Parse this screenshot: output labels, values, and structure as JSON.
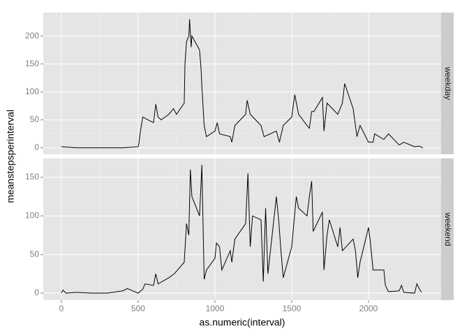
{
  "chart_data": {
    "type": "line",
    "xlabel": "as.numeric(interval)",
    "ylabel": "meanstepsperinterval",
    "xlim": [
      -117.75,
      2472.75
    ],
    "xticks": [
      0,
      500,
      1000,
      1500,
      2000
    ],
    "grid": true,
    "color": "#000000",
    "facets": [
      {
        "strip": "weekday",
        "ylim": [
          -11.5,
          242
        ],
        "yticks": [
          0,
          50,
          100,
          150,
          200
        ],
        "x": [
          0,
          100,
          200,
          300,
          400,
          500,
          505,
          515,
          530,
          600,
          615,
          630,
          650,
          700,
          730,
          750,
          800,
          805,
          815,
          830,
          835,
          845,
          850,
          900,
          910,
          915,
          930,
          945,
          1000,
          1015,
          1030,
          1100,
          1110,
          1130,
          1200,
          1210,
          1230,
          1300,
          1320,
          1400,
          1420,
          1445,
          1500,
          1520,
          1545,
          1600,
          1615,
          1630,
          1645,
          1700,
          1710,
          1730,
          1800,
          1830,
          1845,
          1900,
          1925,
          1945,
          2000,
          2030,
          2040,
          2100,
          2130,
          2200,
          2230,
          2300,
          2330,
          2355
        ],
        "values": [
          2,
          0,
          0,
          0,
          0,
          2,
          8,
          30,
          55,
          45,
          78,
          55,
          50,
          60,
          70,
          60,
          80,
          150,
          190,
          200,
          230,
          180,
          200,
          175,
          140,
          110,
          40,
          20,
          30,
          45,
          25,
          20,
          10,
          40,
          60,
          85,
          60,
          40,
          20,
          30,
          10,
          40,
          55,
          95,
          60,
          40,
          35,
          65,
          65,
          90,
          30,
          80,
          60,
          80,
          115,
          70,
          20,
          40,
          10,
          10,
          25,
          15,
          25,
          5,
          10,
          2,
          3,
          0
        ]
      },
      {
        "strip": "weekend",
        "ylim": [
          -9,
          174.4
        ],
        "yticks": [
          0,
          50,
          100,
          150
        ],
        "x": [
          0,
          10,
          30,
          100,
          200,
          300,
          400,
          430,
          500,
          530,
          545,
          600,
          615,
          630,
          700,
          735,
          800,
          815,
          830,
          840,
          850,
          900,
          915,
          930,
          945,
          1000,
          1010,
          1030,
          1045,
          1100,
          1110,
          1130,
          1200,
          1215,
          1230,
          1245,
          1300,
          1315,
          1330,
          1345,
          1400,
          1415,
          1430,
          1445,
          1500,
          1530,
          1545,
          1600,
          1615,
          1630,
          1640,
          1700,
          1710,
          1730,
          1745,
          1800,
          1815,
          1830,
          1900,
          1915,
          1930,
          1945,
          2000,
          2010,
          2030,
          2100,
          2110,
          2130,
          2200,
          2215,
          2230,
          2300,
          2315,
          2330,
          2345
        ],
        "values": [
          0,
          4,
          0,
          1,
          0,
          0,
          3,
          6,
          0,
          5,
          12,
          10,
          25,
          12,
          20,
          25,
          40,
          90,
          75,
          160,
          125,
          100,
          166,
          18,
          30,
          45,
          65,
          60,
          30,
          55,
          40,
          70,
          90,
          155,
          60,
          100,
          95,
          15,
          110,
          25,
          125,
          95,
          55,
          20,
          60,
          125,
          110,
          100,
          125,
          145,
          80,
          105,
          30,
          75,
          95,
          60,
          85,
          55,
          70,
          55,
          20,
          40,
          85,
          70,
          30,
          30,
          10,
          2,
          3,
          10,
          1,
          0,
          12,
          6,
          1
        ]
      }
    ]
  }
}
